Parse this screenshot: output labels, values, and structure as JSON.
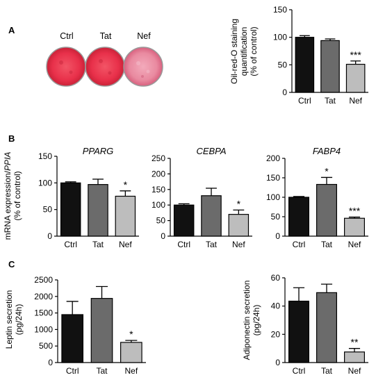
{
  "panels": {
    "A": {
      "letter": "A",
      "wells": [
        "Ctrl",
        "Tat",
        "Nef"
      ]
    },
    "B": {
      "letter": "B"
    },
    "C": {
      "letter": "C"
    }
  },
  "colors": {
    "ctrl": "#111111",
    "tat": "#6b6b6b",
    "nef": "#bdbdbd",
    "stain_outer": "#e8304a",
    "stain_inner": "#f0485a",
    "stain_nef": "#ee93a6"
  },
  "chart_data": [
    {
      "id": "oil-red",
      "type": "bar",
      "categories": [
        "Ctrl",
        "Tat",
        "Nef"
      ],
      "values": [
        100,
        94,
        51
      ],
      "errors": [
        3,
        3,
        6
      ],
      "significance": [
        "",
        "",
        "***"
      ],
      "ylabel": [
        "Oil-red-O staining",
        "quantification",
        "(% of control)"
      ],
      "ylim": [
        0,
        150
      ],
      "yticks": [
        0,
        50,
        100,
        150
      ]
    },
    {
      "id": "pparg",
      "type": "bar",
      "title": "PPARG",
      "categories": [
        "Ctrl",
        "Tat",
        "Nef"
      ],
      "values": [
        100,
        97,
        75
      ],
      "errors": [
        2,
        10,
        10
      ],
      "significance": [
        "",
        "",
        "*"
      ],
      "ylabel": [
        "mRNA expression/PPIA",
        "(% of control)"
      ],
      "ylim": [
        0,
        150
      ],
      "yticks": [
        0,
        50,
        100,
        150
      ]
    },
    {
      "id": "cebpa",
      "type": "bar",
      "title": "CEBPA",
      "categories": [
        "Ctrl",
        "Tat",
        "Nef"
      ],
      "values": [
        100,
        130,
        70
      ],
      "errors": [
        4,
        24,
        14
      ],
      "significance": [
        "",
        "",
        "*"
      ],
      "ylim": [
        0,
        250
      ],
      "yticks": [
        0,
        50,
        100,
        150,
        200,
        250
      ]
    },
    {
      "id": "fabp4",
      "type": "bar",
      "title": "FABP4",
      "categories": [
        "Ctrl",
        "Tat",
        "Nef"
      ],
      "values": [
        100,
        133,
        46
      ],
      "errors": [
        2,
        18,
        3
      ],
      "significance": [
        "",
        "*",
        "***"
      ],
      "ylim": [
        0,
        200
      ],
      "yticks": [
        0,
        50,
        100,
        150,
        200
      ]
    },
    {
      "id": "leptin",
      "type": "bar",
      "categories": [
        "Ctrl",
        "Tat",
        "Nef"
      ],
      "values": [
        1450,
        1940,
        610
      ],
      "errors": [
        400,
        360,
        60
      ],
      "significance": [
        "",
        "",
        "*"
      ],
      "ylabel": [
        "Leptin secretion",
        "(pg/24h)"
      ],
      "ylim": [
        0,
        2500
      ],
      "yticks": [
        0,
        500,
        1000,
        1500,
        2000,
        2500
      ]
    },
    {
      "id": "adiponectin",
      "type": "bar",
      "categories": [
        "Ctrl",
        "Tat",
        "Nef"
      ],
      "values": [
        43.5,
        49.5,
        7.5
      ],
      "errors": [
        9.5,
        6,
        2.5
      ],
      "significance": [
        "",
        "",
        "**"
      ],
      "ylabel": [
        "Adiponectin secretion",
        "(pg/24h)"
      ],
      "ylim": [
        0,
        60
      ],
      "yticks": [
        0,
        20,
        40,
        60
      ]
    }
  ]
}
